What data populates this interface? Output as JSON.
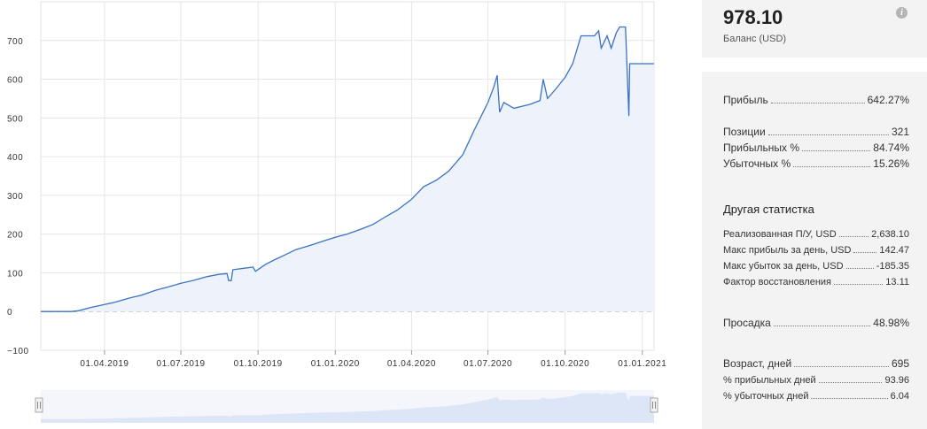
{
  "chart_data": {
    "type": "area",
    "title": "",
    "xlabel": "",
    "ylabel": "",
    "ylim": [
      -100,
      800
    ],
    "y_ticks": [
      "700",
      "600",
      "500",
      "400",
      "300",
      "200",
      "100",
      "0",
      "−100"
    ],
    "x_ticks": [
      "01.04.2019",
      "01.07.2019",
      "01.10.2019",
      "01.01.2020",
      "01.04.2020",
      "01.07.2020",
      "01.10.2020",
      "01.01.2021"
    ],
    "zero_baseline": true,
    "grid": true,
    "series": [
      {
        "color": "#3a72c4",
        "fill": "#eef2fb",
        "points": [
          [
            "2019-01-15",
            0
          ],
          [
            "2019-02-20",
            0
          ],
          [
            "2019-03-01",
            2
          ],
          [
            "2019-03-15",
            10
          ],
          [
            "2019-04-01",
            18
          ],
          [
            "2019-04-15",
            25
          ],
          [
            "2019-05-01",
            35
          ],
          [
            "2019-05-15",
            42
          ],
          [
            "2019-06-01",
            55
          ],
          [
            "2019-06-15",
            63
          ],
          [
            "2019-07-01",
            73
          ],
          [
            "2019-07-15",
            80
          ],
          [
            "2019-08-01",
            90
          ],
          [
            "2019-08-15",
            96
          ],
          [
            "2019-08-25",
            98
          ],
          [
            "2019-08-27",
            80
          ],
          [
            "2019-08-30",
            80
          ],
          [
            "2019-09-01",
            108
          ],
          [
            "2019-09-15",
            112
          ],
          [
            "2019-09-25",
            115
          ],
          [
            "2019-09-28",
            104
          ],
          [
            "2019-10-10",
            122
          ],
          [
            "2019-10-20",
            133
          ],
          [
            "2019-11-01",
            145
          ],
          [
            "2019-11-15",
            160
          ],
          [
            "2019-12-01",
            170
          ],
          [
            "2019-12-15",
            180
          ],
          [
            "2020-01-01",
            192
          ],
          [
            "2020-01-15",
            200
          ],
          [
            "2020-02-01",
            213
          ],
          [
            "2020-02-15",
            225
          ],
          [
            "2020-03-01",
            245
          ],
          [
            "2020-03-15",
            262
          ],
          [
            "2020-04-01",
            290
          ],
          [
            "2020-04-15",
            322
          ],
          [
            "2020-05-01",
            340
          ],
          [
            "2020-05-15",
            362
          ],
          [
            "2020-06-01",
            405
          ],
          [
            "2020-06-15",
            470
          ],
          [
            "2020-07-01",
            540
          ],
          [
            "2020-07-08",
            580
          ],
          [
            "2020-07-12",
            610
          ],
          [
            "2020-07-15",
            515
          ],
          [
            "2020-07-20",
            540
          ],
          [
            "2020-08-01",
            525
          ],
          [
            "2020-08-20",
            535
          ],
          [
            "2020-09-01",
            545
          ],
          [
            "2020-09-05",
            600
          ],
          [
            "2020-09-10",
            550
          ],
          [
            "2020-09-20",
            575
          ],
          [
            "2020-10-01",
            605
          ],
          [
            "2020-10-10",
            640
          ],
          [
            "2020-10-20",
            712
          ],
          [
            "2020-11-05",
            712
          ],
          [
            "2020-11-10",
            725
          ],
          [
            "2020-11-13",
            680
          ],
          [
            "2020-11-20",
            712
          ],
          [
            "2020-11-25",
            680
          ],
          [
            "2020-12-01",
            720
          ],
          [
            "2020-12-05",
            735
          ],
          [
            "2020-12-12",
            735
          ],
          [
            "2020-12-16",
            505
          ],
          [
            "2020-12-17",
            640
          ],
          [
            "2021-01-15",
            640
          ]
        ]
      }
    ]
  },
  "balance": {
    "value": "978.10",
    "label": "Баланс (USD)",
    "info_icon": "info-icon"
  },
  "stats": {
    "profit": {
      "label": "Прибыль",
      "value": "642.27%"
    },
    "positions": {
      "label": "Позиции",
      "value": "321"
    },
    "profitable_pct": {
      "label": "Прибыльных %",
      "value": "84.74%"
    },
    "losing_pct": {
      "label": "Убыточных %",
      "value": "15.26%"
    },
    "other_title": "Другая статистка",
    "realized_pl": {
      "label": "Реализованная П/У, USD",
      "value": "2,638.10"
    },
    "max_day_profit": {
      "label": "Макс прибыль за день, USD",
      "value": "142.47"
    },
    "max_day_loss": {
      "label": "Макс убыток за день, USD",
      "value": "-185.35"
    },
    "recovery_factor": {
      "label": "Фактор восстановления",
      "value": "13.11"
    },
    "drawdown": {
      "label": "Просадка",
      "value": "48.98%"
    },
    "age_days": {
      "label": "Возраст, дней",
      "value": "695"
    },
    "profitable_days_pct": {
      "label": "% прибыльных дней",
      "value": "93.96"
    },
    "losing_days_pct": {
      "label": "% убыточных дней",
      "value": "6.04"
    }
  }
}
